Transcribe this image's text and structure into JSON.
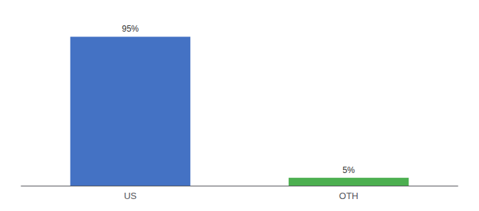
{
  "chart_data": {
    "type": "bar",
    "categories": [
      "US",
      "OTH"
    ],
    "values": [
      95,
      5
    ],
    "value_labels": [
      "95%",
      "5%"
    ],
    "colors": [
      "#4472C4",
      "#4CAF50"
    ],
    "ylim": [
      0,
      105
    ],
    "data_labels": true,
    "tick_labels": "x",
    "grid": false
  }
}
